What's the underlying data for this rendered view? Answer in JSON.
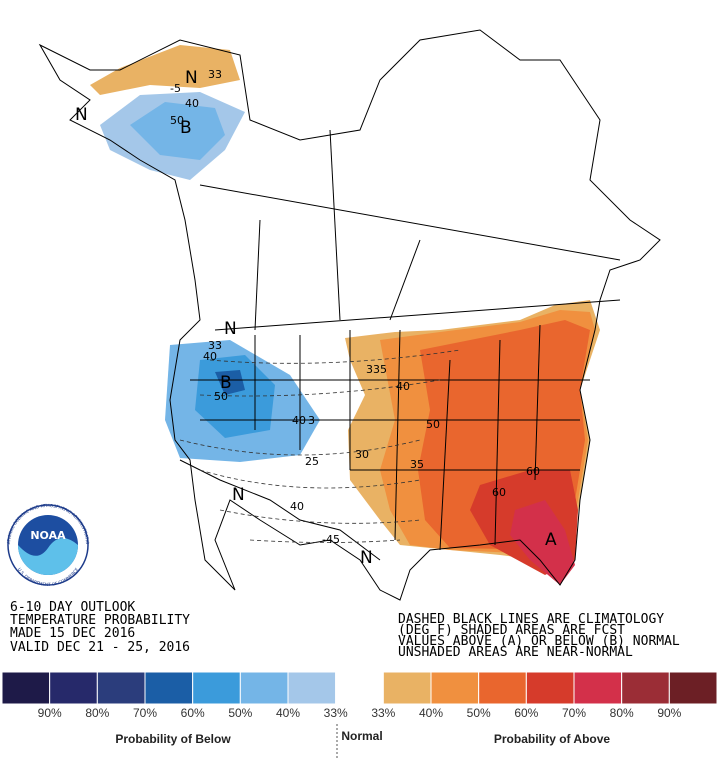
{
  "header": {
    "lines": [
      "6-10 DAY OUTLOOK",
      "TEMPERATURE PROBABILITY",
      "MADE  15 DEC 2016",
      "VALID  DEC 21 - 25, 2016"
    ]
  },
  "note": {
    "lines": [
      "DASHED BLACK LINES ARE CLIMATOLOGY",
      "(DEG F) SHADED AREAS ARE FCST",
      "VALUES ABOVE (A) OR BELOW (B) NORMAL",
      "UNSHADED AREAS ARE NEAR-NORMAL"
    ]
  },
  "logo": {
    "name": "NOAA",
    "ring_top": "NATIONAL OCEANIC AND ATMOSPHERIC ADMINISTRATION",
    "ring_bottom": "U.S. DEPARTMENT OF COMMERCE"
  },
  "map": {
    "labels": [
      "N",
      "B",
      "N",
      "B",
      "N",
      "N",
      "N",
      "A",
      "33",
      "-5",
      "40",
      "50",
      "33",
      "40",
      "50",
      "40",
      "3",
      "335",
      "40",
      "50",
      "25",
      "30",
      "35",
      "40",
      "-45",
      "60",
      "60"
    ]
  },
  "legend": {
    "colors": [
      "#1e1a48",
      "#26296a",
      "#2b3d7c",
      "#1b5ea6",
      "#3b9bdb",
      "#74b5e7",
      "#a4c7e9",
      "#ffffff",
      "#e9b264",
      "#f0903f",
      "#e9662e",
      "#d63b2b",
      "#d3304a",
      "#9b2d36",
      "#6c1f25"
    ],
    "labels": [
      "90%",
      "80%",
      "70%",
      "60%",
      "50%",
      "40%",
      "33%",
      "33%",
      "40%",
      "50%",
      "60%",
      "70%",
      "80%",
      "90%"
    ],
    "below": "Probability of Below",
    "normal": "Normal",
    "above": "Probability of Above"
  }
}
